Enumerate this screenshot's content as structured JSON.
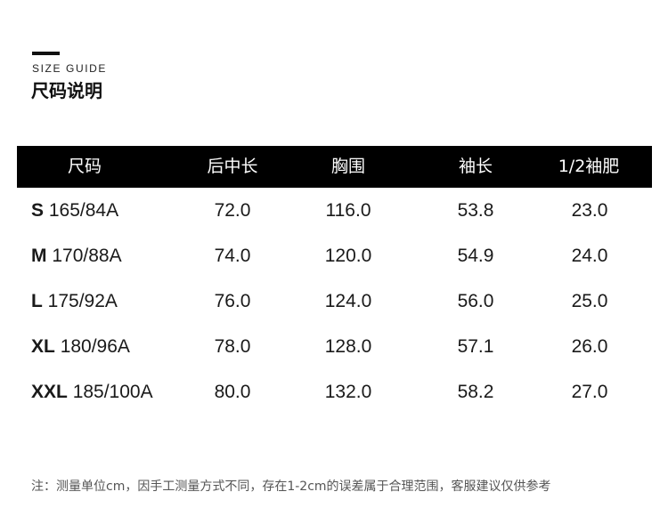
{
  "header": {
    "guide_en": "SIZE GUIDE",
    "guide_cn": "尺码说明"
  },
  "table": {
    "columns": [
      "尺码",
      "后中长",
      "胸围",
      "袖长",
      "1/2袖肥"
    ],
    "rows": [
      {
        "size": "S",
        "spec": "165/84A",
        "values": [
          "72.0",
          "116.0",
          "53.8",
          "23.0"
        ]
      },
      {
        "size": "M",
        "spec": "170/88A",
        "values": [
          "74.0",
          "120.0",
          "54.9",
          "24.0"
        ]
      },
      {
        "size": "L",
        "spec": "175/92A",
        "values": [
          "76.0",
          "124.0",
          "56.0",
          "25.0"
        ]
      },
      {
        "size": "XL",
        "spec": "180/96A",
        "values": [
          "78.0",
          "128.0",
          "57.1",
          "26.0"
        ]
      },
      {
        "size": "XXL",
        "spec": "185/100A",
        "values": [
          "80.0",
          "132.0",
          "58.2",
          "27.0"
        ]
      }
    ]
  },
  "footer": {
    "note": "注：测量单位cm，因手工测量方式不同，存在1-2cm的误差属于合理范围，客服建议仅供参考"
  }
}
